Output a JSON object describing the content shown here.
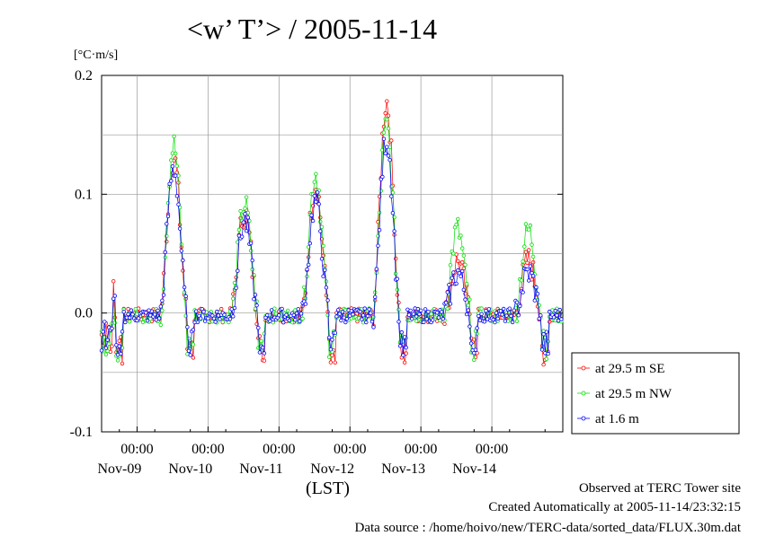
{
  "title": "<w’ T’> / 2005-11-14",
  "unit_label": "[°C·m/s]",
  "xaxis_label": "(LST)",
  "footer": {
    "observed": "Observed at TERC Tower site",
    "created": "Created Automatically at 2005-11-14/23:32:15",
    "source": "Data source : /home/hoivo/new/TERC-data/sorted_data/FLUX.30m.dat"
  },
  "chart_data": {
    "type": "line",
    "ylim": [
      -0.1,
      0.2
    ],
    "yticks": [
      "0.2",
      "0.1",
      "0.0",
      "-0.1"
    ],
    "xlim": [
      "2005-11-08T12:00",
      "2005-11-15T00:00"
    ],
    "xticks": [
      {
        "time": "00:00",
        "day": "Nov-09"
      },
      {
        "time": "00:00",
        "day": "Nov-10"
      },
      {
        "time": "00:00",
        "day": "Nov-11"
      },
      {
        "time": "00:00",
        "day": "Nov-12"
      },
      {
        "time": "00:00",
        "day": "Nov-13"
      },
      {
        "time": "00:00",
        "day": "Nov-14"
      }
    ],
    "grid": true,
    "legend_position": "right",
    "series": [
      {
        "name": "at 29.5 m SE",
        "color": "#ff0000",
        "peaks": [
          0.173,
          0.131,
          0.085,
          0.109,
          0.178,
          0.044
        ]
      },
      {
        "name": "at 29.5 m NW",
        "color": "#00dd00",
        "peaks": [
          0.155,
          0.141,
          0.091,
          0.118,
          0.157,
          0.07
        ]
      },
      {
        "name": "at 1.6 m",
        "color": "#0000ff",
        "peaks": [
          0.136,
          0.122,
          0.078,
          0.094,
          0.147,
          0.034
        ]
      }
    ]
  }
}
